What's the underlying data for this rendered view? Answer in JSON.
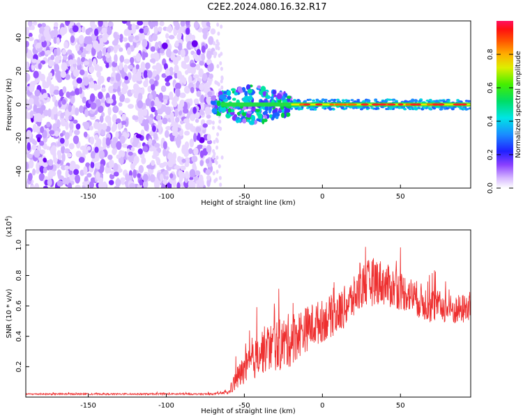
{
  "title": "C2E2.2024.080.16.32.R17",
  "chart_data": [
    {
      "type": "heatmap",
      "xlabel": "Height of straight line (km)",
      "ylabel": "Frequency (Hz)",
      "xlim": [
        -190,
        95
      ],
      "ylim": [
        -50,
        50
      ],
      "xticks": [
        -150,
        -100,
        -50,
        0,
        50
      ],
      "yticks": [
        -40,
        -20,
        0,
        20,
        40
      ],
      "colorbar": {
        "label": "Normalized spectral amplitude",
        "range": [
          0.0,
          1.0
        ],
        "ticks": [
          0.0,
          0.2,
          0.4,
          0.6,
          0.8
        ]
      },
      "regions": [
        {
          "x_range": [
            -190,
            -70
          ],
          "freq_range": [
            -50,
            50
          ],
          "amplitude": 0.0
        },
        {
          "x_range": [
            -70,
            -20
          ],
          "freq_range": [
            -12,
            12
          ],
          "amplitude": 0.3
        },
        {
          "x_range": [
            -20,
            95
          ],
          "freq_range": [
            -3,
            3
          ],
          "amplitude": 0.9
        }
      ],
      "grid": false
    },
    {
      "type": "line",
      "xlabel": "Height of straight line (km)",
      "ylabel": "SNR (10 * v/v)",
      "y_multiplier": "(x10^4)",
      "xlim": [
        -190,
        95
      ],
      "ylim": [
        0,
        1.1
      ],
      "xticks": [
        -150,
        -100,
        -50,
        0,
        50
      ],
      "yticks": [
        0.2,
        0.4,
        0.6,
        0.8,
        1.0
      ],
      "color": "#ee3030",
      "series": [
        {
          "x": [
            -190,
            -150,
            -100,
            -70,
            -60,
            -55,
            -50,
            -45,
            -40,
            -35,
            -30,
            -25,
            -20,
            -15,
            -10,
            -5,
            0,
            5,
            10,
            15,
            20,
            25,
            30,
            35,
            40,
            45,
            50,
            55,
            60,
            65,
            70,
            75,
            80,
            85,
            90,
            95
          ],
          "values": [
            0.02,
            0.02,
            0.02,
            0.02,
            0.03,
            0.12,
            0.18,
            0.22,
            0.3,
            0.32,
            0.34,
            0.35,
            0.38,
            0.42,
            0.45,
            0.48,
            0.5,
            0.53,
            0.55,
            0.6,
            0.65,
            0.72,
            0.75,
            0.77,
            0.74,
            0.72,
            0.7,
            0.68,
            0.65,
            0.62,
            0.6,
            0.6,
            0.58,
            0.57,
            0.58,
            0.6
          ],
          "noise": [
            0.005,
            0.005,
            0.005,
            0.005,
            0.01,
            0.08,
            0.1,
            0.12,
            0.15,
            0.16,
            0.17,
            0.18,
            0.18,
            0.16,
            0.15,
            0.15,
            0.14,
            0.14,
            0.14,
            0.14,
            0.14,
            0.14,
            0.16,
            0.16,
            0.14,
            0.14,
            0.13,
            0.12,
            0.12,
            0.12,
            0.12,
            0.1,
            0.1,
            0.1,
            0.1,
            0.1
          ]
        }
      ],
      "grid": false
    }
  ]
}
